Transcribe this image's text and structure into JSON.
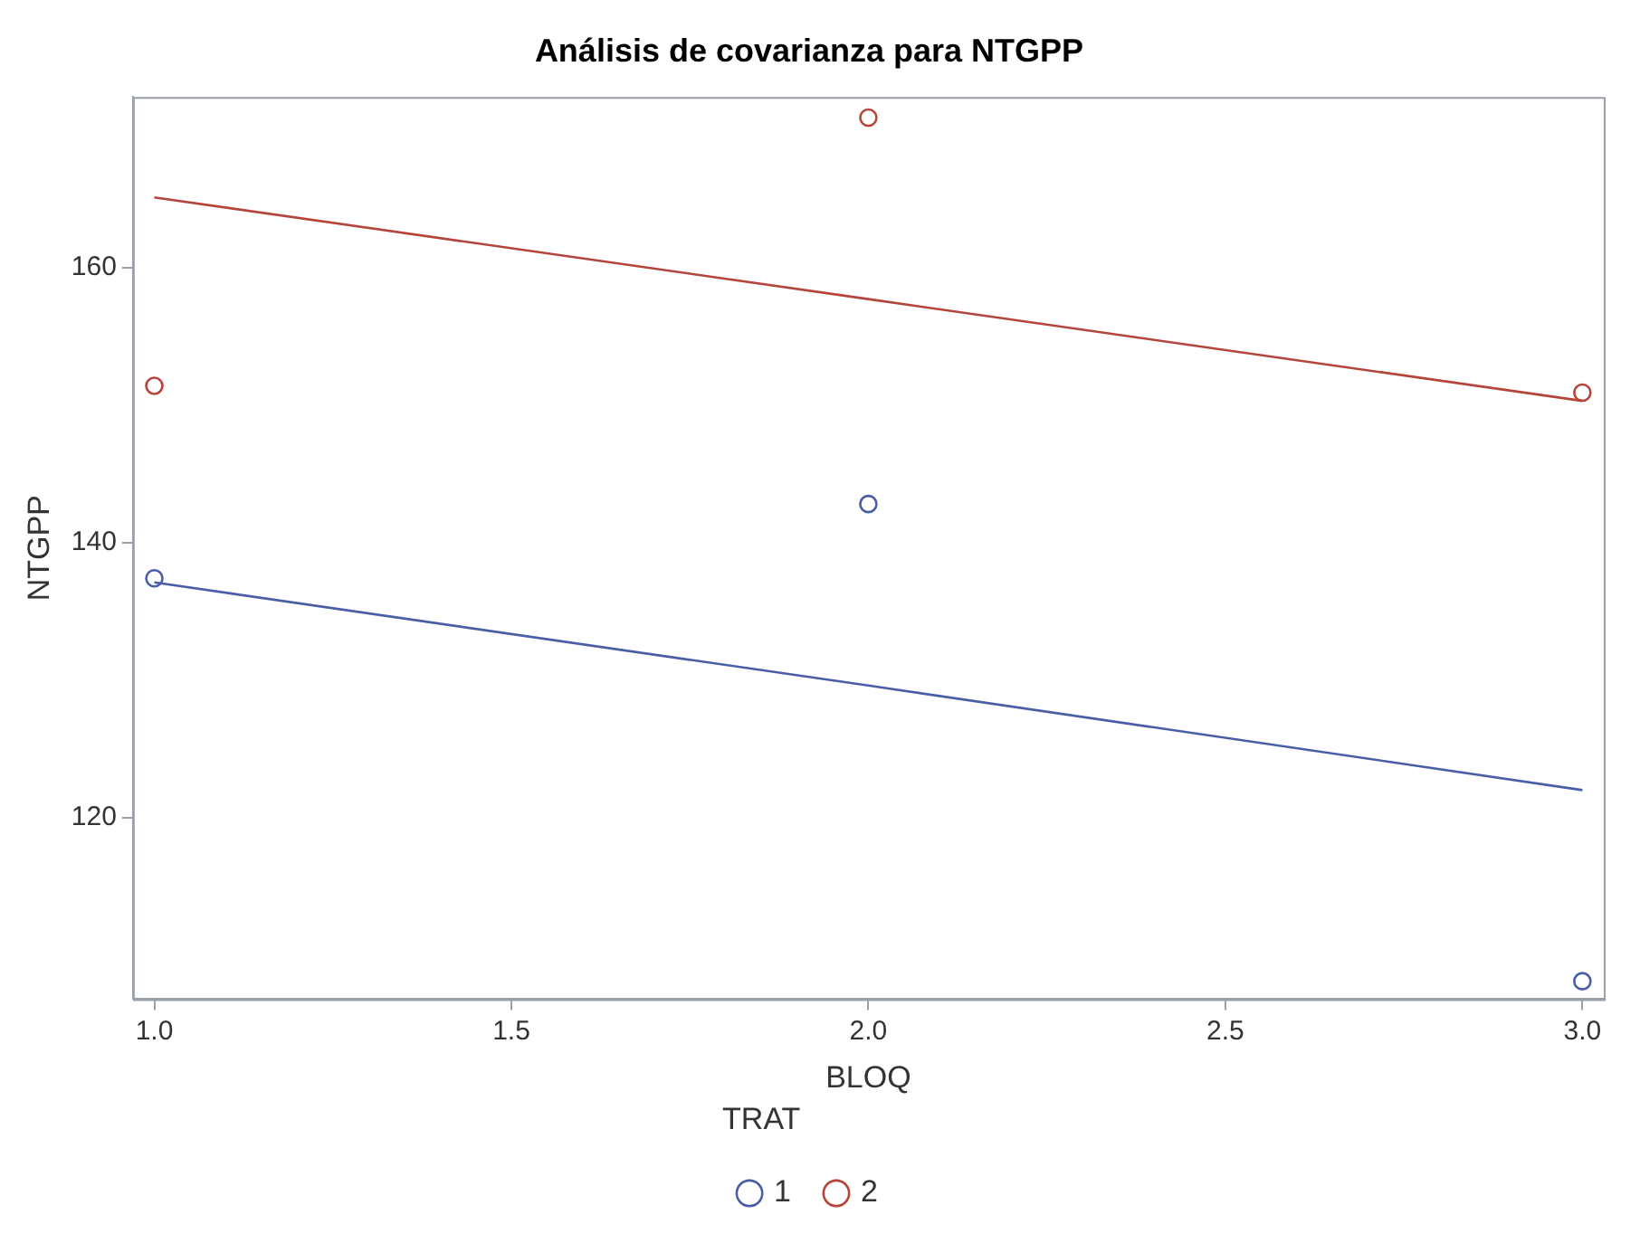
{
  "chart_data": {
    "type": "scatter",
    "title": "Análisis de covarianza para NTGPP",
    "xlabel": "BLOQ",
    "ylabel": "NTGPP",
    "legend_title": "TRAT",
    "legend": "bottom",
    "grid": false,
    "marker": "circle",
    "xlim": [
      0.97,
      3.03
    ],
    "xticks": [
      {
        "value": 1,
        "label": "1.0"
      },
      {
        "value": 1.5,
        "label": "1.5"
      },
      {
        "value": 2,
        "label": "2.0"
      },
      {
        "value": 2.5,
        "label": "2.5"
      },
      {
        "value": 3,
        "label": "3.0"
      }
    ],
    "ylim": [
      106.8,
      172.4
    ],
    "yticks": [
      120,
      140,
      160
    ],
    "x": [
      1,
      2,
      3
    ],
    "series": [
      {
        "name": "1",
        "color": "#4a5ea8",
        "values": [
          137.4,
          142.8,
          108.1
        ]
      },
      {
        "name": "2",
        "color": "#b5443a",
        "values": [
          151.4,
          170.9,
          150.9
        ]
      },
      {
        "type": "line",
        "color": "#4a5ea8",
        "values": [
          137.1,
          129.6,
          122.0
        ],
        "marker": "none"
      },
      {
        "type": "line",
        "color": "#b5443a",
        "values": [
          165.1,
          157.7,
          150.3
        ],
        "marker": "none"
      }
    ]
  }
}
